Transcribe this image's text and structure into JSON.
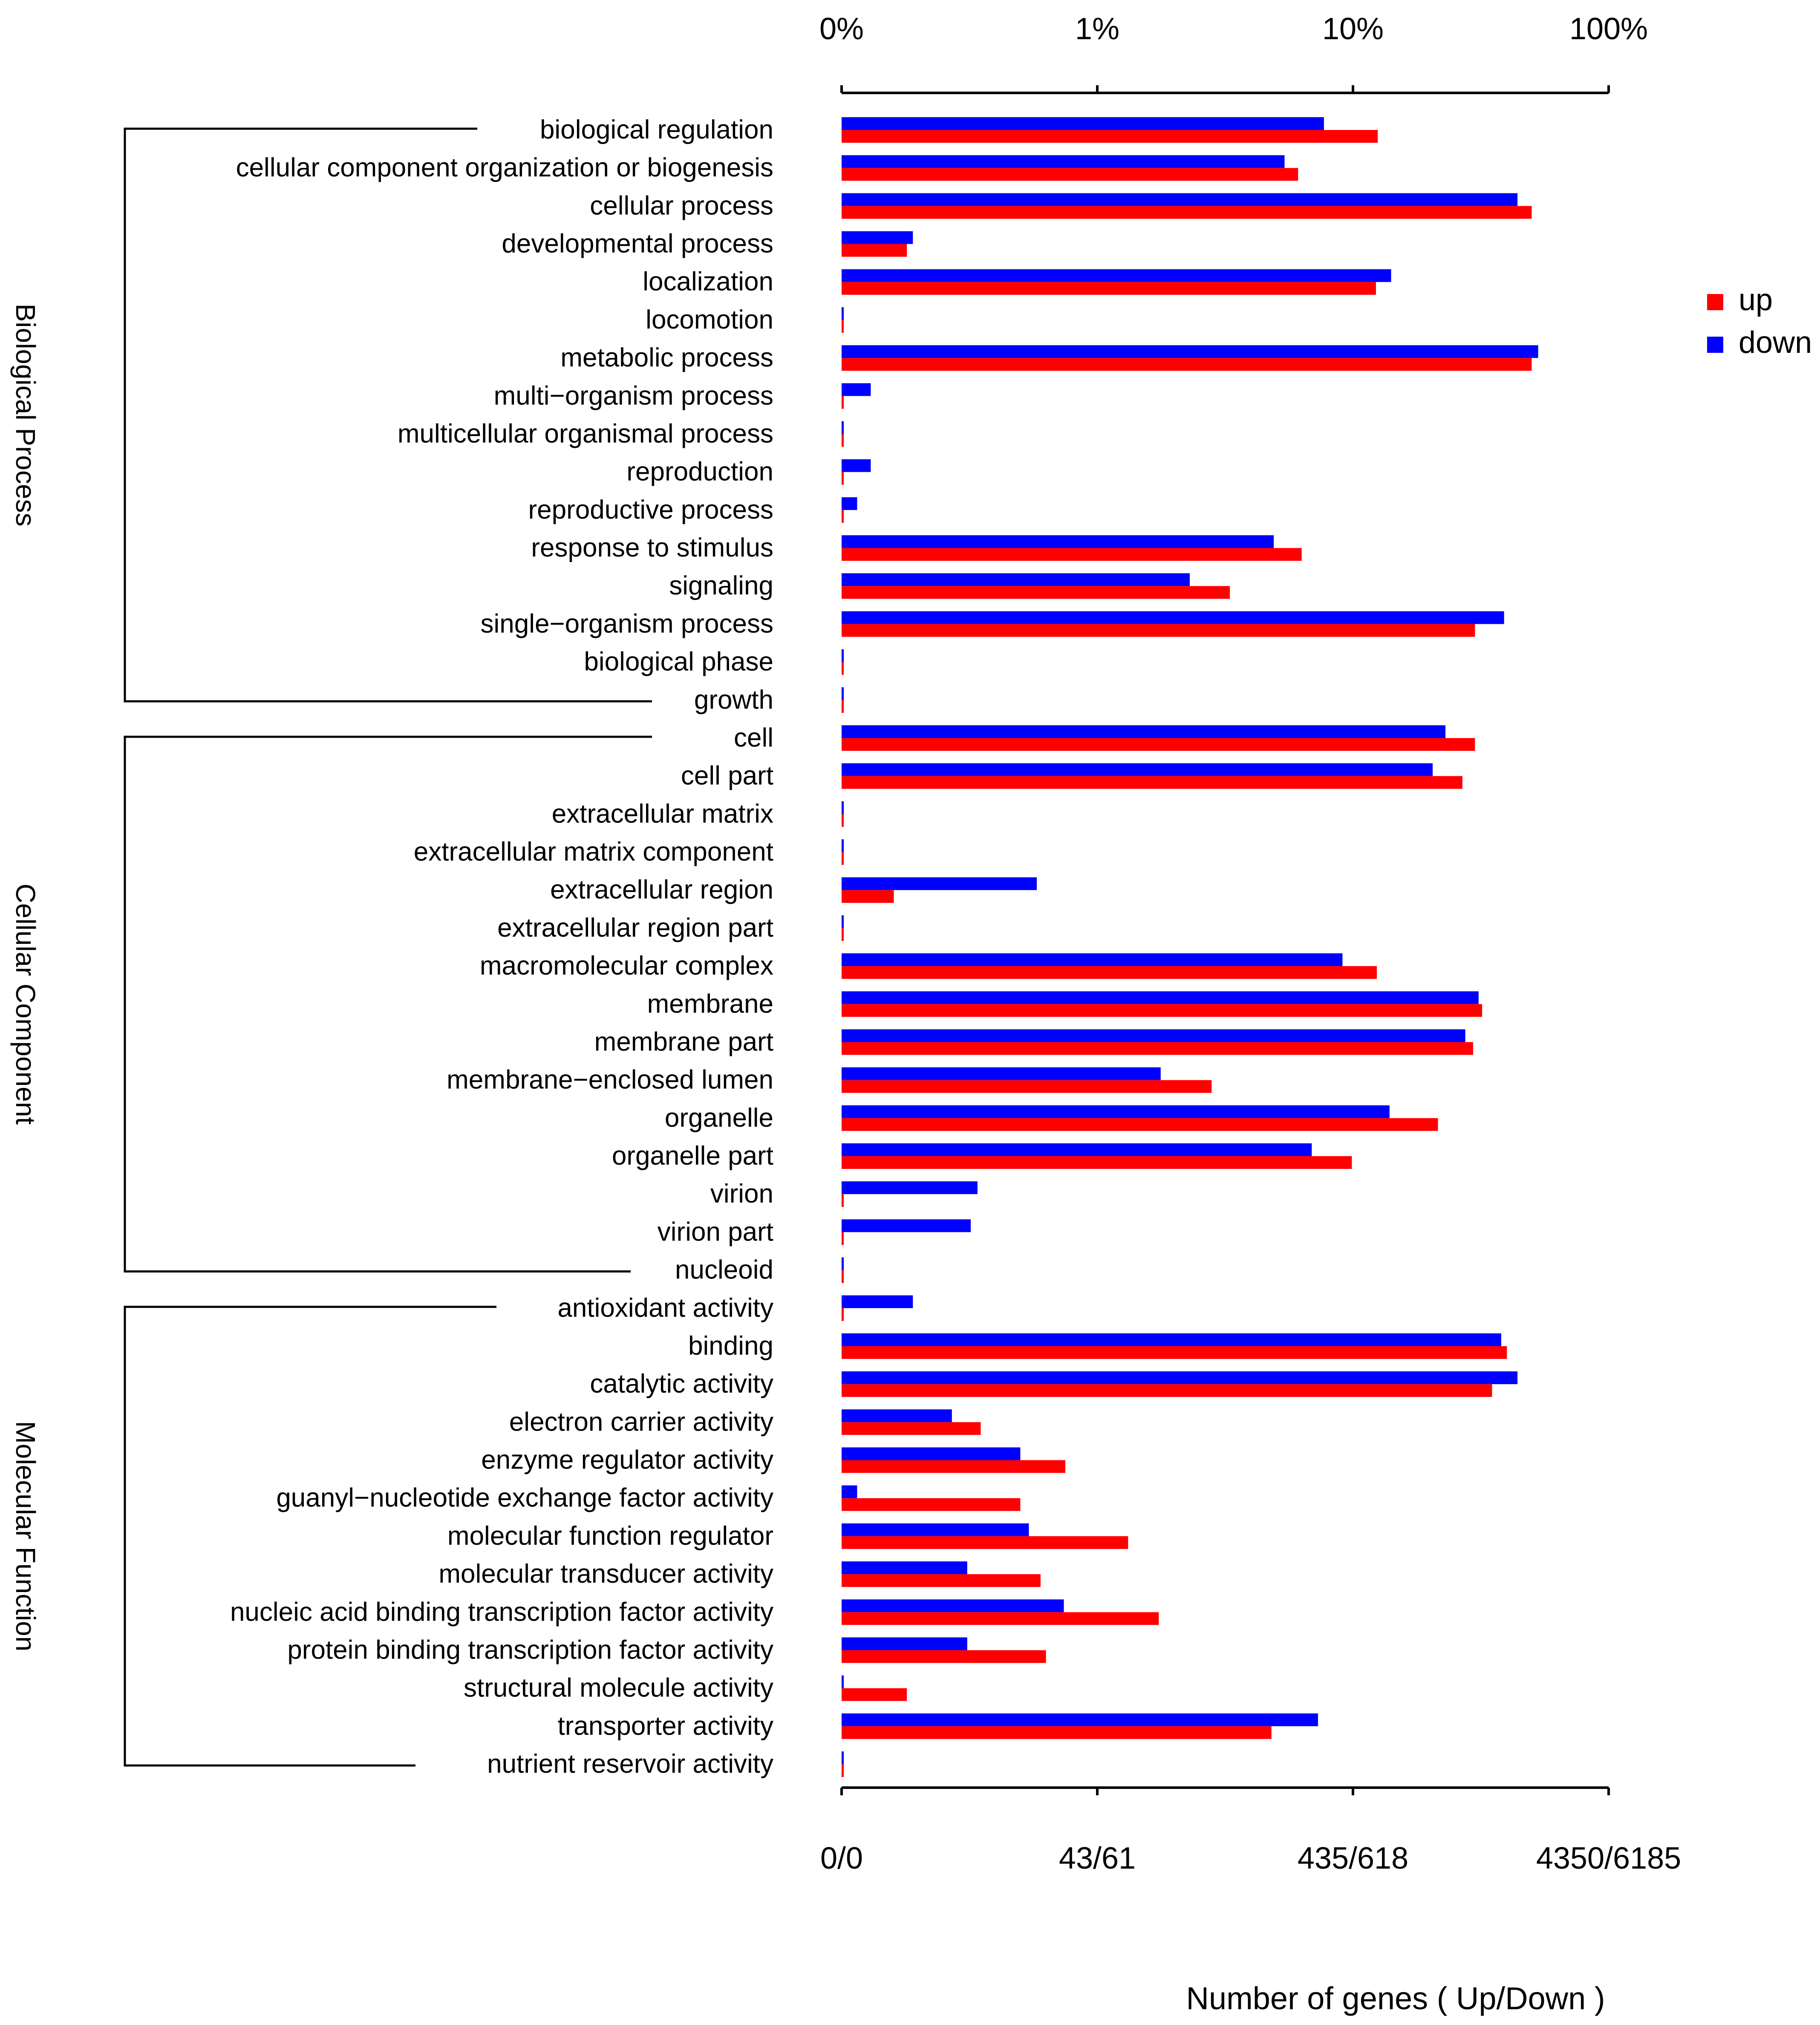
{
  "chart_data": {
    "type": "bar",
    "orientation": "horizontal",
    "scale": "log",
    "xlabel": "Number of genes ( Up/Down )",
    "top_axis": {
      "ticks": [
        "0%",
        "1%",
        "10%",
        "100%"
      ]
    },
    "bottom_axis": {
      "ticks": [
        "0/0",
        "43/61",
        "435/618",
        "4350/6185"
      ]
    },
    "xlim_percent": [
      0.1,
      100
    ],
    "legend": {
      "position": "right",
      "entries": [
        {
          "name": "up",
          "color": "#ff0000"
        },
        {
          "name": "down",
          "color": "#0000ff"
        }
      ]
    },
    "groups": [
      {
        "name": "Biological Process",
        "first": 0,
        "last": 15
      },
      {
        "name": "Cellular Component",
        "first": 16,
        "last": 30
      },
      {
        "name": "Molecular Function",
        "first": 31,
        "last": 43
      }
    ],
    "categories": [
      "biological regulation",
      "cellular component organization or biogenesis",
      "cellular process",
      "developmental process",
      "localization",
      "locomotion",
      "metabolic process",
      "multi−organism process",
      "multicellular organismal process",
      "reproduction",
      "reproductive process",
      "response to stimulus",
      "signaling",
      "single−organism process",
      "biological phase",
      "growth",
      "cell",
      "cell part",
      "extracellular matrix",
      "extracellular matrix component",
      "extracellular region",
      "extracellular region part",
      "macromolecular complex",
      "membrane",
      "membrane part",
      "membrane−enclosed lumen",
      "organelle",
      "organelle part",
      "virion",
      "virion part",
      "nucleoid",
      "antioxidant activity",
      "binding",
      "catalytic activity",
      "electron carrier activity",
      "enzyme regulator activity",
      "guanyl−nucleotide exchange factor activity",
      "molecular function regulator",
      "molecular transducer activity",
      "nucleic acid binding transcription factor activity",
      "protein binding transcription factor activity",
      "structural molecule activity",
      "transporter activity",
      "nutrient reservoir activity"
    ],
    "series": [
      {
        "name": "down",
        "color": "#0000ff",
        "values_percent": [
          7.7,
          5.4,
          44,
          0.19,
          14.1,
          0.1,
          53,
          0.13,
          0.1,
          0.13,
          0.115,
          4.9,
          2.3,
          39,
          0.1,
          0.1,
          23,
          20.5,
          0.1,
          0.1,
          0.58,
          0.1,
          9.1,
          31,
          27.5,
          1.77,
          13.9,
          6.9,
          0.34,
          0.32,
          0.1,
          0.19,
          38,
          44,
          0.27,
          0.5,
          0.115,
          0.54,
          0.31,
          0.74,
          0.31,
          0.1,
          7.3,
          0.1
        ]
      },
      {
        "name": "up",
        "color": "#ff0000",
        "values_percent": [
          12.5,
          6.1,
          50,
          0.18,
          12.3,
          0.1,
          50,
          0.1,
          0.1,
          0.1,
          0.1,
          6.3,
          3.3,
          30,
          0.1,
          0.1,
          30,
          26.8,
          0.1,
          0.1,
          0.16,
          0.1,
          12.4,
          32,
          29.5,
          2.8,
          21.5,
          9.9,
          0.1,
          0.1,
          0.1,
          0.1,
          40,
          35,
          0.35,
          0.75,
          0.5,
          1.32,
          0.6,
          1.74,
          0.63,
          0.18,
          4.8,
          0.1
        ]
      }
    ]
  }
}
